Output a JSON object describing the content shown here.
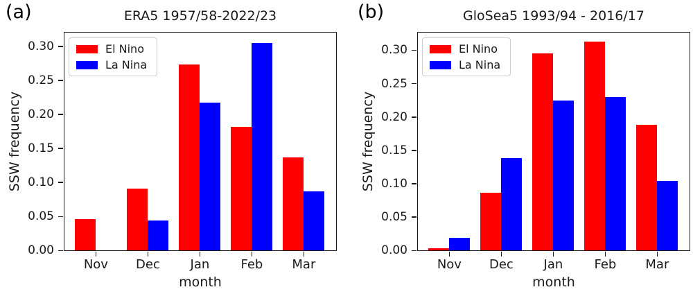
{
  "figure": {
    "background": "#ffffff",
    "text_color": "#1a1a1a"
  },
  "chart_data": [
    {
      "type": "bar",
      "panel": "(a)",
      "title": "ERA5 1957/58-2022/23",
      "xlabel": "month",
      "ylabel": "SSW frequency",
      "categories": [
        "Nov",
        "Dec",
        "Jan",
        "Feb",
        "Mar"
      ],
      "series": [
        {
          "name": "El Nino",
          "color": "#ff0000",
          "values": [
            0.0455,
            0.0909,
            0.2727,
            0.1818,
            0.1364
          ]
        },
        {
          "name": "La Nina",
          "color": "#0000ff",
          "values": [
            0.0,
            0.0435,
            0.2174,
            0.3043,
            0.087
          ]
        }
      ],
      "ytick_labels": [
        "0.00",
        "0.05",
        "0.10",
        "0.15",
        "0.20",
        "0.25",
        "0.30"
      ],
      "ylim": [
        0,
        0.322
      ],
      "legend_position": "upper left",
      "grid": false
    },
    {
      "type": "bar",
      "panel": "(b)",
      "title": "GloSea5 1993/94 - 2016/17",
      "xlabel": "month",
      "ylabel": "SSW frequency",
      "categories": [
        "Nov",
        "Dec",
        "Jan",
        "Feb",
        "Mar"
      ],
      "series": [
        {
          "name": "El Nino",
          "color": "#ff0000",
          "values": [
            0.003,
            0.086,
            0.295,
            0.312,
            0.188
          ]
        },
        {
          "name": "La Nina",
          "color": "#0000ff",
          "values": [
            0.019,
            0.138,
            0.224,
            0.229,
            0.104
          ]
        }
      ],
      "ytick_labels": [
        "0.00",
        "0.05",
        "0.10",
        "0.15",
        "0.20",
        "0.25",
        "0.30"
      ],
      "ylim": [
        0,
        0.328
      ],
      "legend_position": "upper left",
      "grid": false
    }
  ]
}
